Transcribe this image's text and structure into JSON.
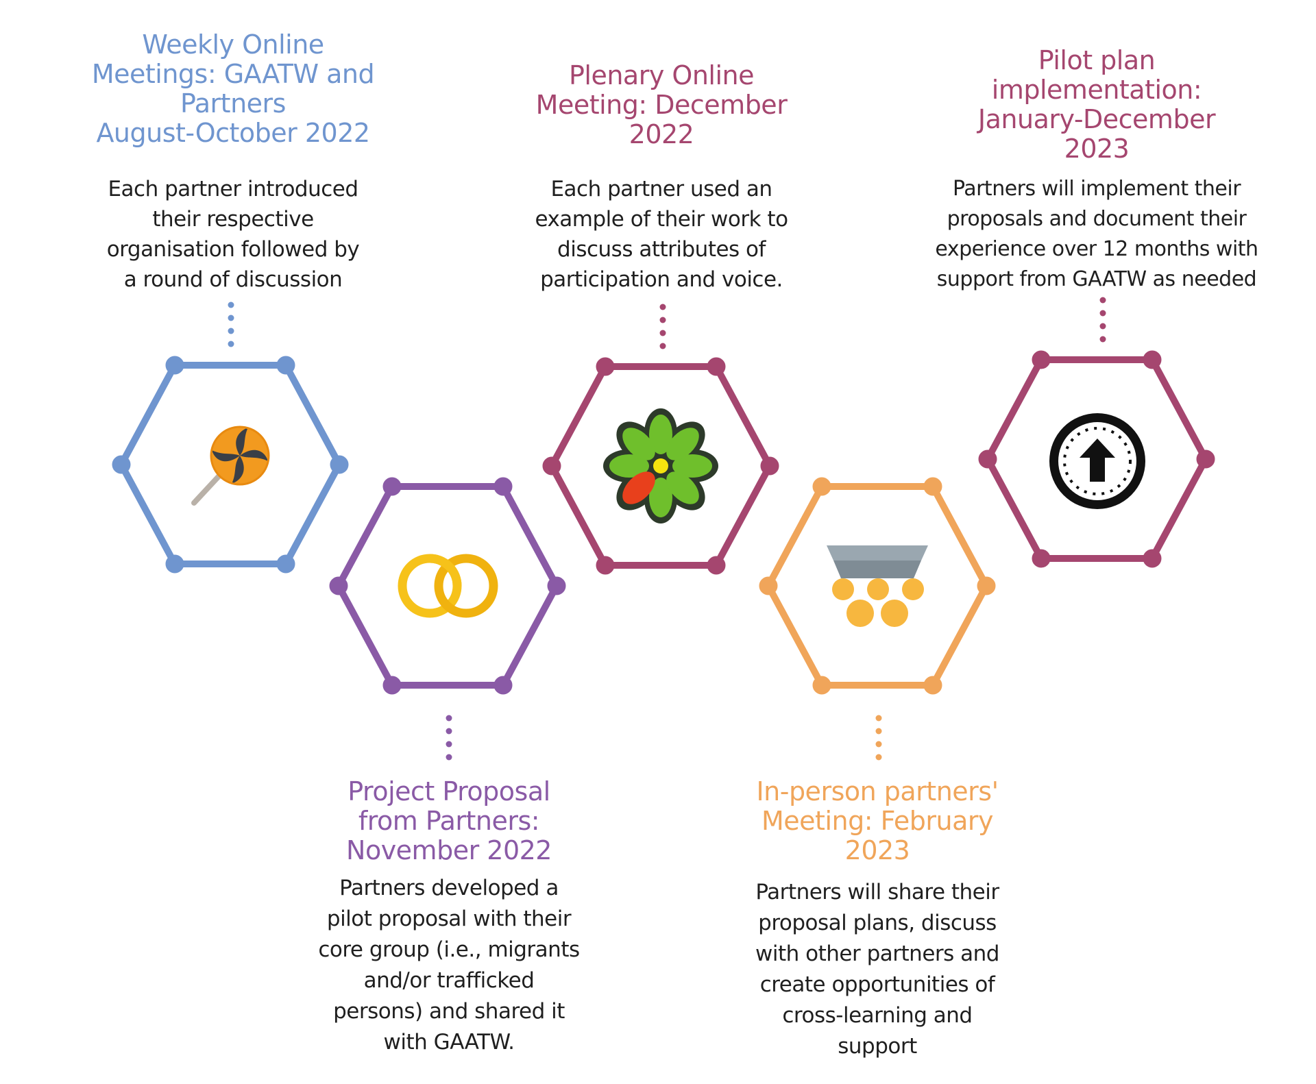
{
  "stages": [
    {
      "id": "weekly",
      "title_lines": [
        "Weekly Online",
        "Meetings: GAATW and",
        "Partners",
        "August-October 2022"
      ],
      "desc_lines": [
        "Each partner introduced",
        "their respective",
        "organisation followed by",
        "a round of discussion"
      ],
      "color": "#6f95cf",
      "icon": "lollipop-icon"
    },
    {
      "id": "proposal",
      "title_lines": [
        "Project Proposal",
        "from Partners:",
        "November 2022"
      ],
      "desc_lines": [
        "Partners developed a",
        "pilot proposal with their",
        "core group (i.e., migrants",
        "and/or trafficked",
        "persons) and shared it",
        "with GAATW."
      ],
      "color": "#8a5aa6",
      "icon": "interlocking-rings-icon"
    },
    {
      "id": "plenary",
      "title_lines": [
        "Plenary Online",
        "Meeting: December",
        "2022"
      ],
      "desc_lines": [
        "Each partner used an",
        "example of their work to",
        "discuss attributes of",
        "participation and voice."
      ],
      "color": "#a5466f",
      "icon": "flower-icon"
    },
    {
      "id": "inperson",
      "title_lines": [
        "In-person partners'",
        "Meeting: February",
        "2023"
      ],
      "desc_lines": [
        "Partners will share their",
        "proposal plans, discuss",
        "with other partners and",
        "create opportunities of",
        "cross-learning and",
        "support"
      ],
      "color": "#f0a55a",
      "icon": "meeting-table-icon"
    },
    {
      "id": "pilot",
      "title_lines": [
        "Pilot plan",
        "implementation:",
        "January-December",
        "2023"
      ],
      "desc_lines": [
        "Partners will implement their",
        "proposals and document their",
        "experience over 12 months with",
        "support from GAATW as needed"
      ],
      "color": "#a5466f",
      "icon": "upload-arrow-icon"
    }
  ]
}
